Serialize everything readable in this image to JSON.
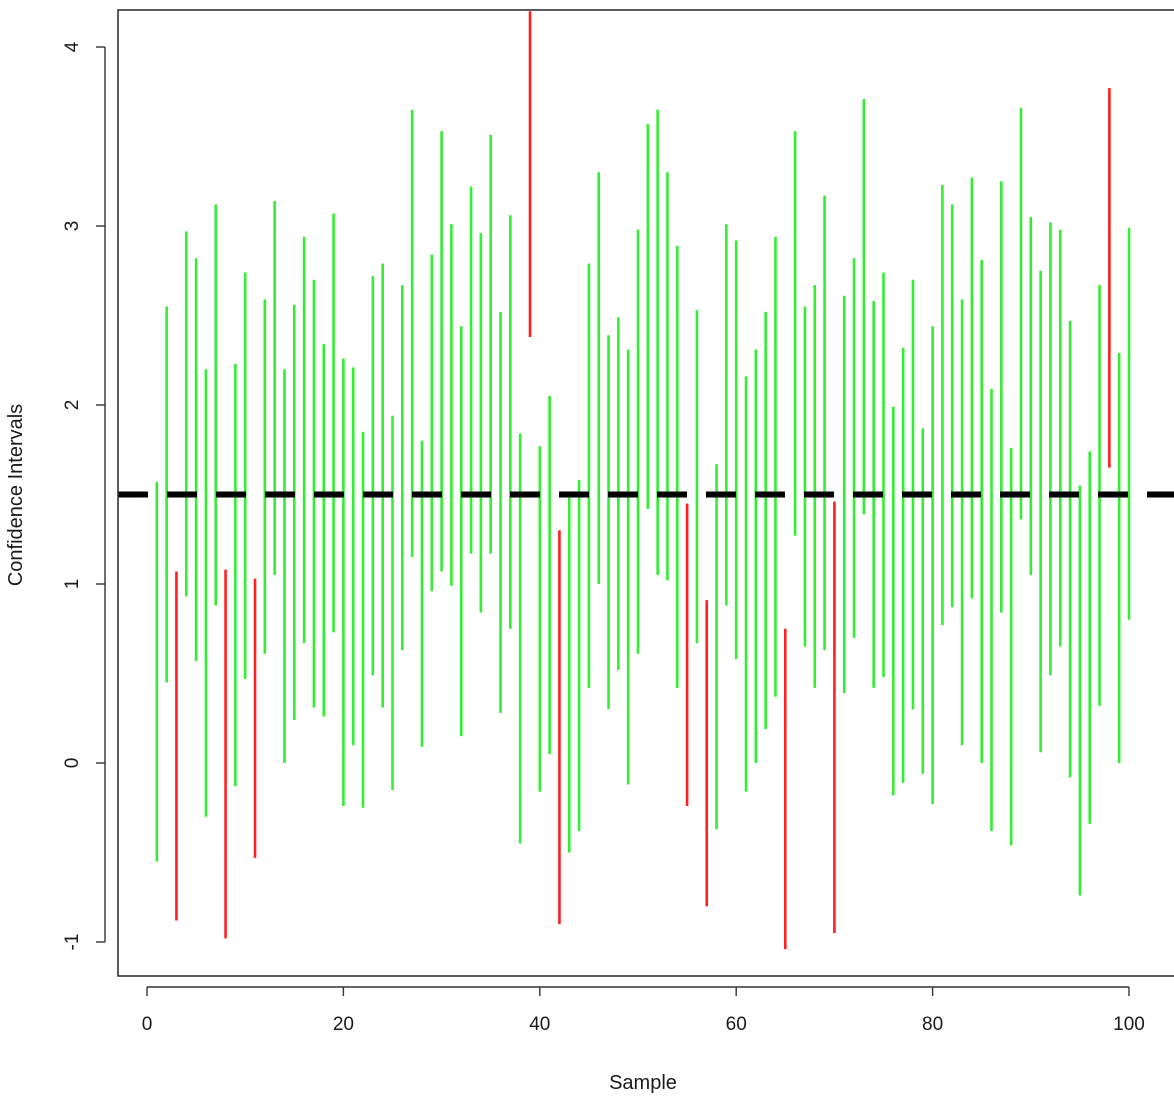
{
  "chart_data": {
    "type": "interval",
    "title": "",
    "xlabel": "Sample",
    "ylabel": "Confidence Intervals",
    "xlim": [
      -1,
      104
    ],
    "ylim": [
      -1.2,
      4.2
    ],
    "xticks": [
      "0",
      "20",
      "40",
      "60",
      "80",
      "100"
    ],
    "yticks": [
      "-1",
      "0",
      "1",
      "2",
      "3",
      "4"
    ],
    "reference_line": {
      "value": 1.5,
      "style": "dashed",
      "color": "#000000"
    },
    "colors": {
      "covers": "#33ee33",
      "misses": "#ff2020"
    },
    "intervals": [
      [
        -0.55,
        1.57
      ],
      [
        0.45,
        2.55
      ],
      [
        -0.88,
        1.07
      ],
      [
        0.93,
        2.97
      ],
      [
        0.57,
        2.82
      ],
      [
        -0.3,
        2.2
      ],
      [
        0.88,
        3.12
      ],
      [
        -0.98,
        1.08
      ],
      [
        -0.13,
        2.23
      ],
      [
        0.47,
        2.74
      ],
      [
        -0.53,
        1.03
      ],
      [
        0.61,
        2.59
      ],
      [
        1.05,
        3.14
      ],
      [
        0.0,
        2.2
      ],
      [
        0.24,
        2.56
      ],
      [
        0.67,
        2.94
      ],
      [
        0.31,
        2.7
      ],
      [
        0.26,
        2.34
      ],
      [
        0.73,
        3.07
      ],
      [
        -0.24,
        2.26
      ],
      [
        0.1,
        2.21
      ],
      [
        -0.25,
        1.85
      ],
      [
        0.49,
        2.72
      ],
      [
        0.31,
        2.79
      ],
      [
        -0.15,
        1.94
      ],
      [
        0.63,
        2.67
      ],
      [
        1.15,
        3.65
      ],
      [
        0.09,
        1.8
      ],
      [
        0.96,
        2.84
      ],
      [
        1.07,
        3.53
      ],
      [
        0.99,
        3.01
      ],
      [
        0.15,
        2.44
      ],
      [
        1.17,
        3.22
      ],
      [
        0.84,
        2.96
      ],
      [
        1.17,
        3.51
      ],
      [
        0.28,
        2.52
      ],
      [
        0.75,
        3.06
      ],
      [
        -0.45,
        1.84
      ],
      [
        2.38,
        4.2
      ],
      [
        -0.16,
        1.77
      ],
      [
        0.05,
        2.05
      ],
      [
        -0.9,
        1.3
      ],
      [
        -0.5,
        1.5
      ],
      [
        -0.38,
        1.58
      ],
      [
        0.42,
        2.79
      ],
      [
        1.0,
        3.3
      ],
      [
        0.3,
        2.39
      ],
      [
        0.52,
        2.49
      ],
      [
        -0.12,
        2.31
      ],
      [
        0.61,
        2.98
      ],
      [
        1.42,
        3.57
      ],
      [
        1.05,
        3.65
      ],
      [
        1.02,
        3.3
      ],
      [
        0.42,
        2.89
      ],
      [
        -0.24,
        1.45
      ],
      [
        0.67,
        2.53
      ],
      [
        -0.8,
        0.91
      ],
      [
        -0.37,
        1.67
      ],
      [
        0.88,
        3.01
      ],
      [
        0.58,
        2.92
      ],
      [
        -0.16,
        2.16
      ],
      [
        0.0,
        2.31
      ],
      [
        0.19,
        2.52
      ],
      [
        0.37,
        2.94
      ],
      [
        -1.04,
        0.75
      ],
      [
        1.27,
        3.53
      ],
      [
        0.65,
        2.55
      ],
      [
        0.42,
        2.67
      ],
      [
        0.63,
        3.17
      ],
      [
        -0.95,
        1.46
      ],
      [
        0.39,
        2.61
      ],
      [
        0.7,
        2.82
      ],
      [
        1.39,
        3.71
      ],
      [
        0.42,
        2.58
      ],
      [
        0.48,
        2.74
      ],
      [
        -0.18,
        1.99
      ],
      [
        -0.11,
        2.32
      ],
      [
        0.3,
        2.7
      ],
      [
        -0.06,
        1.87
      ],
      [
        -0.23,
        2.44
      ],
      [
        0.77,
        3.23
      ],
      [
        0.87,
        3.12
      ],
      [
        0.1,
        2.59
      ],
      [
        0.92,
        3.27
      ],
      [
        0.0,
        2.81
      ],
      [
        -0.38,
        2.09
      ],
      [
        0.84,
        3.25
      ],
      [
        -0.46,
        1.76
      ],
      [
        1.36,
        3.66
      ],
      [
        1.05,
        3.05
      ],
      [
        0.06,
        2.75
      ],
      [
        0.49,
        3.02
      ],
      [
        0.65,
        2.98
      ],
      [
        -0.08,
        2.47
      ],
      [
        -0.74,
        1.55
      ],
      [
        -0.34,
        1.74
      ],
      [
        0.32,
        2.67
      ],
      [
        1.65,
        3.77
      ],
      [
        0.0,
        2.29
      ],
      [
        0.8,
        2.99
      ]
    ]
  }
}
